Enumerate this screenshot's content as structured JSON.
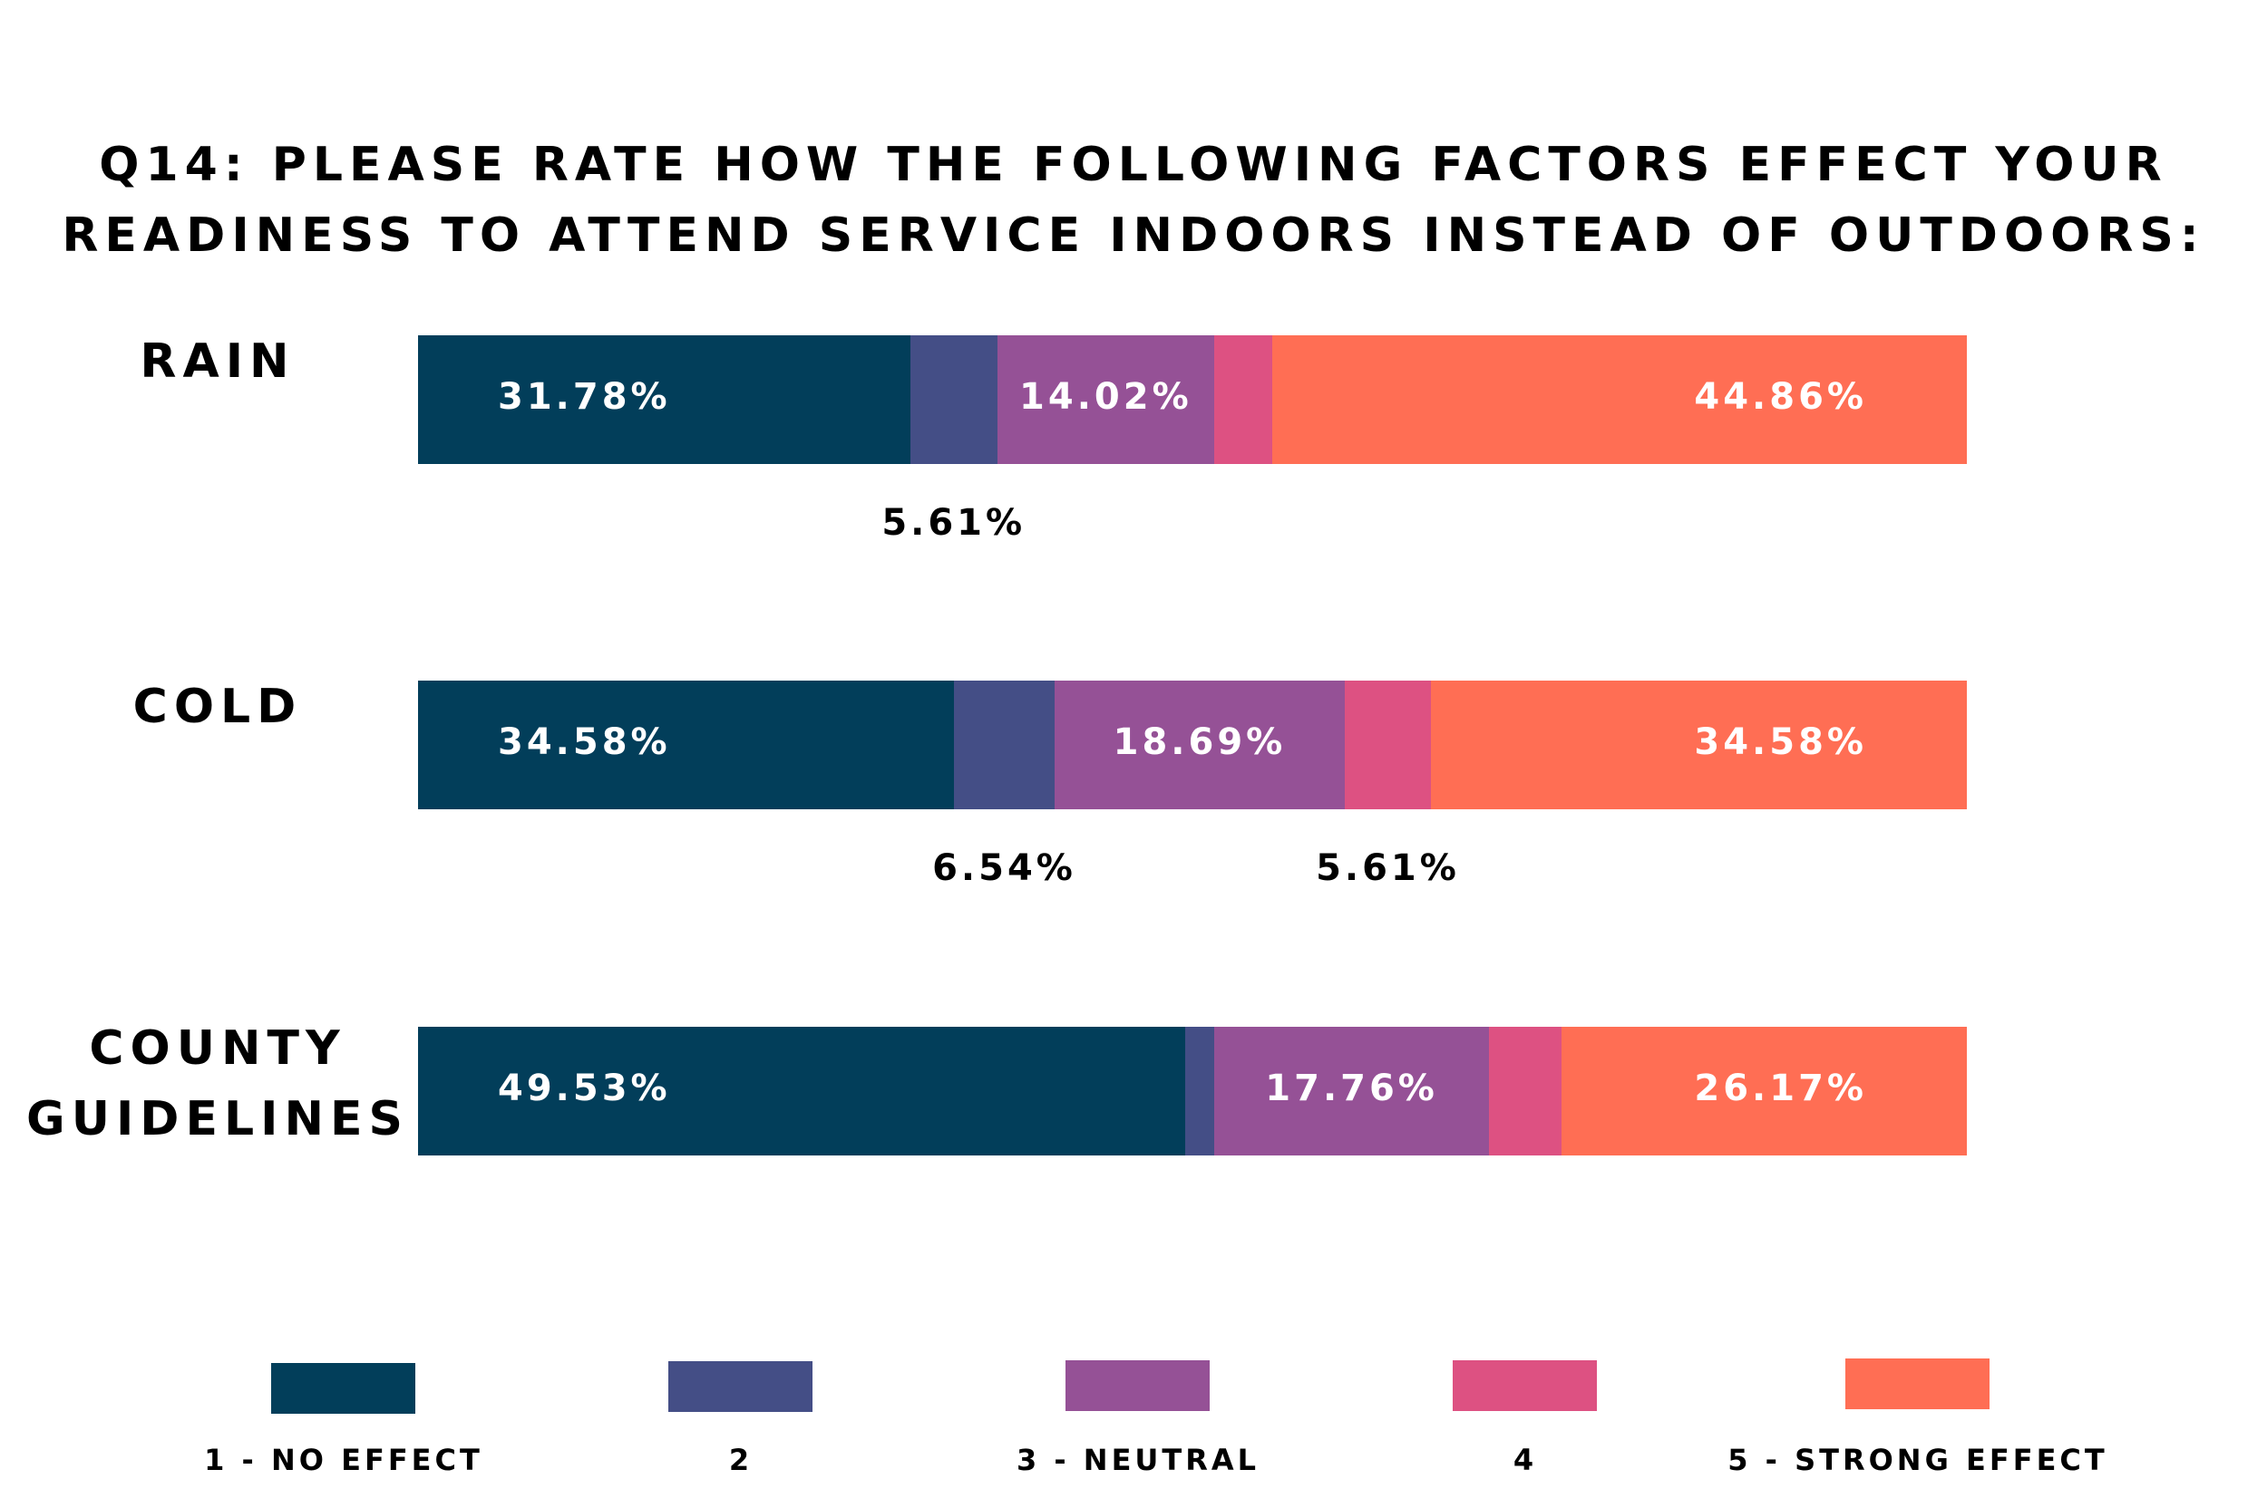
{
  "chart_data": {
    "type": "bar",
    "orientation": "horizontal",
    "stacked": true,
    "title": "Q14: PLEASE RATE HOW THE FOLLOWING FACTORS EFFECT YOUR READINESS TO ATTEND SERVICE INDOORS INSTEAD OF OUTDOORS:",
    "title_lines": [
      "Q14: PLEASE RATE HOW THE FOLLOWING FACTORS EFFECT YOUR",
      "READINESS TO ATTEND SERVICE INDOORS INSTEAD OF OUTDOORS:"
    ],
    "categories": [
      "RAIN",
      "COLD",
      "COUNTY GUIDELINES"
    ],
    "category_label_lines": [
      [
        "RAIN"
      ],
      [
        "COLD"
      ],
      [
        "COUNTY",
        "GUIDELINES"
      ]
    ],
    "xlabel": "",
    "ylabel": "",
    "xlim": [
      0,
      100
    ],
    "grid": false,
    "legend_position": "bottom",
    "series": [
      {
        "name": "1 - NO EFFECT",
        "color": "#023e5a",
        "values": [
          31.78,
          34.58,
          49.53
        ],
        "labels": [
          "31.78%",
          "34.58%",
          "49.53%"
        ],
        "label_placement": [
          "inside",
          "inside",
          "inside"
        ]
      },
      {
        "name": "2",
        "color": "#444e86",
        "values": [
          5.61,
          6.54,
          1.87
        ],
        "labels": [
          "5.61%",
          "6.54%",
          ""
        ],
        "label_placement": [
          "below",
          "below",
          "none"
        ]
      },
      {
        "name": "3 - NEUTRAL",
        "color": "#955196",
        "values": [
          14.02,
          18.69,
          17.76
        ],
        "labels": [
          "14.02%",
          "18.69%",
          "17.76%"
        ],
        "label_placement": [
          "inside",
          "inside",
          "inside"
        ]
      },
      {
        "name": "4",
        "color": "#dd5182",
        "values": [
          3.73,
          5.61,
          4.67
        ],
        "labels": [
          "",
          "5.61%",
          ""
        ],
        "label_placement": [
          "none",
          "below",
          "none"
        ]
      },
      {
        "name": "5 - STRONG EFFECT",
        "color": "#ff6e54",
        "values": [
          44.86,
          34.58,
          26.17
        ],
        "labels": [
          "44.86%",
          "34.58%",
          "26.17%"
        ],
        "label_placement": [
          "inside-right",
          "inside-right",
          "inside-right"
        ]
      }
    ]
  }
}
